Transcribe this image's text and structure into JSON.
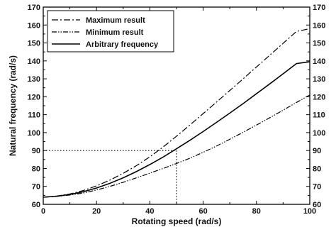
{
  "chart_data": {
    "type": "line",
    "xlabel": "Rotating speed (rad/s)",
    "ylabel": "Natural frequency (rad/s)",
    "xlim": [
      0,
      100
    ],
    "ylim": [
      60,
      170
    ],
    "x_ticks": [
      "0",
      "20",
      "40",
      "60",
      "80",
      "100"
    ],
    "y_ticks": [
      "60",
      "70",
      "80",
      "90",
      "100",
      "110",
      "120",
      "130",
      "140",
      "150",
      "160",
      "170"
    ],
    "right_axis_ticks": [
      "60",
      "70",
      "80",
      "90",
      "100",
      "110",
      "120",
      "130",
      "140",
      "150",
      "160",
      "170"
    ],
    "grid": false,
    "legend_position": "top-left",
    "series": [
      {
        "name": "Maximum result",
        "style": "dash-dot",
        "x": [
          0,
          5,
          10,
          15,
          20,
          25,
          30,
          35,
          40,
          45,
          50,
          55,
          60,
          65,
          70,
          75,
          80,
          85,
          90,
          95,
          100
        ],
        "y": [
          64,
          64.6,
          65.8,
          67.7,
          70.3,
          73.5,
          77.3,
          81.6,
          86.5,
          92,
          98,
          104.2,
          110.6,
          117,
          123.5,
          130,
          136.6,
          143.2,
          149.8,
          156.4,
          158
        ]
      },
      {
        "name": "Minimum result",
        "style": "dash-dot-dot",
        "x": [
          0,
          5,
          10,
          15,
          20,
          25,
          30,
          35,
          40,
          45,
          50,
          55,
          60,
          65,
          70,
          75,
          80,
          85,
          90,
          95,
          100
        ],
        "y": [
          64,
          64.4,
          65.2,
          66.3,
          68,
          70,
          72.3,
          74.8,
          77.4,
          80,
          82.8,
          85.7,
          89,
          92.5,
          96.3,
          100.2,
          104.2,
          108.3,
          112.5,
          116.8,
          121
        ]
      },
      {
        "name": "Arbitrary frequency",
        "style": "solid",
        "x": [
          0,
          5,
          10,
          15,
          20,
          25,
          30,
          35,
          40,
          45,
          50,
          55,
          60,
          65,
          70,
          75,
          80,
          85,
          90,
          95,
          100
        ],
        "y": [
          64,
          64.5,
          65.5,
          67,
          69.1,
          71.7,
          74.8,
          78.3,
          82.2,
          86.4,
          91,
          95.7,
          100.6,
          105.7,
          110.9,
          116.2,
          121.7,
          127.2,
          132.8,
          138.5,
          139.5
        ]
      }
    ],
    "reference_lines": {
      "x": 50,
      "y": 90,
      "style": "dotted"
    }
  }
}
